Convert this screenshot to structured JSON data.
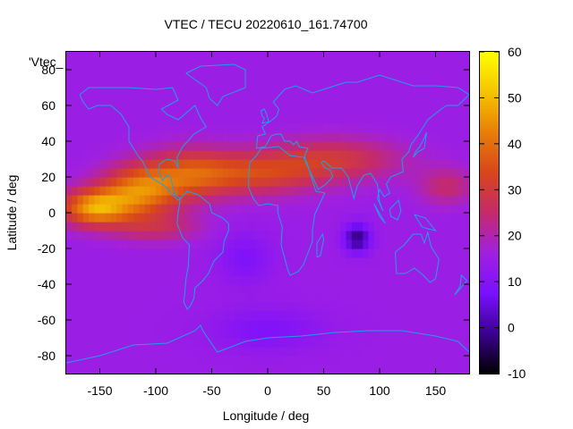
{
  "chart_data": {
    "type": "heatmap",
    "title": "VTEC / TECU 20220610_161.74700",
    "xlabel": "Longitude / deg",
    "ylabel": "Latitude / deg",
    "key_label": "'Vtec_",
    "xlim": [
      -180,
      180
    ],
    "ylim": [
      -90,
      90
    ],
    "xticks": [
      -150,
      -100,
      -50,
      0,
      50,
      100,
      150
    ],
    "yticks": [
      -80,
      -60,
      -40,
      -20,
      0,
      20,
      40,
      60,
      80
    ],
    "colorbar": {
      "range": [
        -10,
        60
      ],
      "ticks": [
        -10,
        0,
        10,
        20,
        30,
        40,
        50,
        60
      ],
      "palette": [
        "#000000",
        "#3a0090",
        "#7a10ff",
        "#a020e0",
        "#c52a6a",
        "#d8461a",
        "#e87f08",
        "#f5c500",
        "#ffff00"
      ]
    },
    "grid": false,
    "field": {
      "description_units": "TECU",
      "background": 15,
      "features": [
        {
          "lon": -155,
          "lat": 3,
          "slon": 30,
          "slat": 10,
          "amp": 30
        },
        {
          "lon": -115,
          "lat": 12,
          "slon": 35,
          "slat": 14,
          "amp": 26
        },
        {
          "lon": -70,
          "lat": 22,
          "slon": 40,
          "slat": 14,
          "amp": 18
        },
        {
          "lon": -10,
          "lat": 22,
          "slon": 55,
          "slat": 12,
          "amp": 16
        },
        {
          "lon": 60,
          "lat": 30,
          "slon": 60,
          "slat": 12,
          "amp": 14
        },
        {
          "lon": 160,
          "lat": 15,
          "slon": 25,
          "slat": 10,
          "amp": 10
        },
        {
          "lon": -100,
          "lat": -8,
          "slon": 40,
          "slat": 8,
          "amp": 10
        },
        {
          "lon": 80,
          "lat": -14,
          "slon": 12,
          "slat": 8,
          "amp": -17
        },
        {
          "lon": -20,
          "lat": -25,
          "slon": 25,
          "slat": 15,
          "amp": -6
        },
        {
          "lon": 0,
          "lat": -65,
          "slon": 50,
          "slat": 12,
          "amp": -6
        }
      ]
    }
  },
  "colors": {
    "coastline": "#1ea0e6"
  }
}
